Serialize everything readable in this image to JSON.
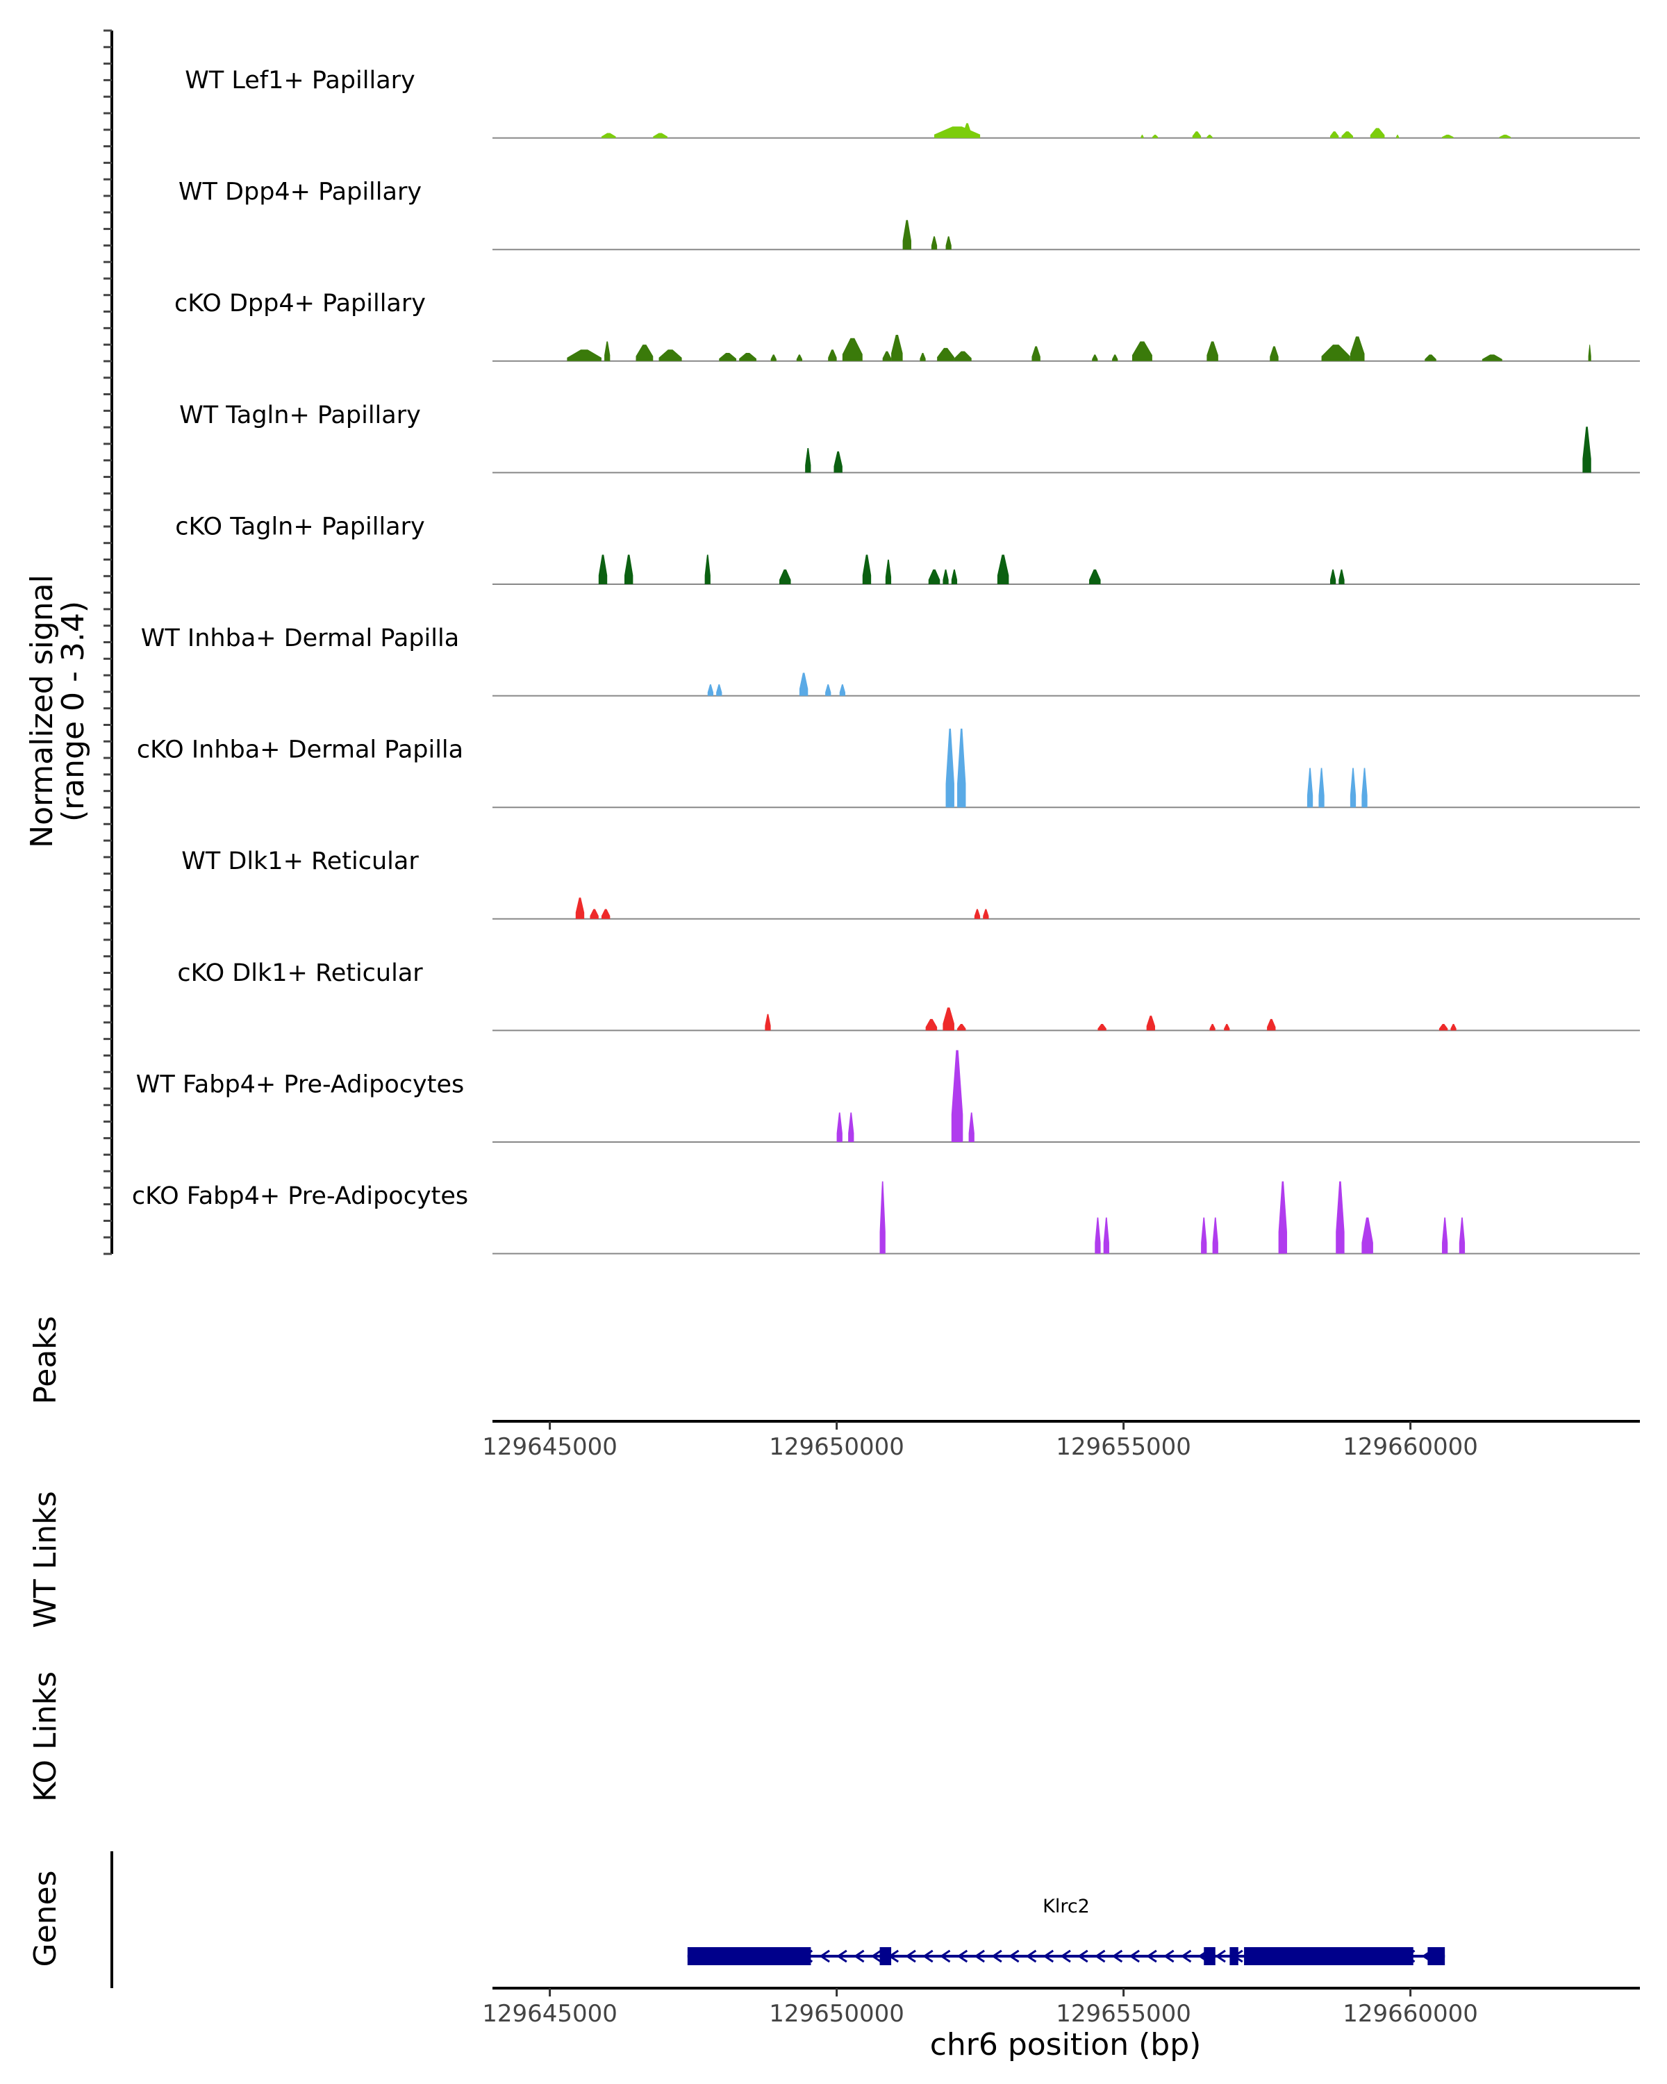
{
  "chart_data": {
    "type": "area",
    "title": "",
    "ylabel": "Normalized signal",
    "ylabel_sub": "(range 0 - 3.4)",
    "yrange": [
      0,
      3.4
    ],
    "xlabel": "chr6 position (bp)",
    "xlim": [
      129644000,
      129664000
    ],
    "xticks": [
      129645000,
      129650000,
      129655000,
      129660000
    ],
    "xtick_labels": [
      "129645000",
      "129650000",
      "129655000",
      "129660000"
    ],
    "tracks": [
      {
        "name": "WT Lef1+ Papillary",
        "color": "#7CCD0C",
        "peaks": [
          [
            129645900,
            129646150,
            0.15
          ],
          [
            129646800,
            129647050,
            0.15
          ],
          [
            129651700,
            129652500,
            0.35
          ],
          [
            129652200,
            129652350,
            0.45
          ],
          [
            129655300,
            129655350,
            0.1
          ],
          [
            129655500,
            129655600,
            0.1
          ],
          [
            129656200,
            129656350,
            0.2
          ],
          [
            129656450,
            129656550,
            0.1
          ],
          [
            129658600,
            129658750,
            0.2
          ],
          [
            129658800,
            129659000,
            0.2
          ],
          [
            129659300,
            129659550,
            0.3
          ],
          [
            129659750,
            129659800,
            0.1
          ],
          [
            129660550,
            129660750,
            0.1
          ],
          [
            129661550,
            129661750,
            0.1
          ]
        ]
      },
      {
        "name": "WT Dpp4+ Papillary",
        "color": "#3A7A0A",
        "peaks": [
          [
            129651150,
            129651300,
            0.9
          ],
          [
            129651650,
            129651750,
            0.4
          ],
          [
            129651900,
            129652000,
            0.4
          ]
        ]
      },
      {
        "name": "cKO Dpp4+ Papillary",
        "color": "#3A7A0A",
        "peaks": [
          [
            129645300,
            129645900,
            0.35
          ],
          [
            129645950,
            129646050,
            0.6
          ],
          [
            129646500,
            129646800,
            0.5
          ],
          [
            129646900,
            129647300,
            0.35
          ],
          [
            129647950,
            129648250,
            0.25
          ],
          [
            129648300,
            129648600,
            0.25
          ],
          [
            129648850,
            129648950,
            0.2
          ],
          [
            129649300,
            129649400,
            0.2
          ],
          [
            129649850,
            129650000,
            0.35
          ],
          [
            129650100,
            129650450,
            0.7
          ],
          [
            129650800,
            129650950,
            0.3
          ],
          [
            129650950,
            129651150,
            0.8
          ],
          [
            129651450,
            129651550,
            0.25
          ],
          [
            129651750,
            129652050,
            0.4
          ],
          [
            129652050,
            129652350,
            0.3
          ],
          [
            129653400,
            129653550,
            0.45
          ],
          [
            129654450,
            129654550,
            0.2
          ],
          [
            129654800,
            129654900,
            0.2
          ],
          [
            129655150,
            129655500,
            0.6
          ],
          [
            129656450,
            129656650,
            0.6
          ],
          [
            129657550,
            129657700,
            0.45
          ],
          [
            129658450,
            129658950,
            0.5
          ],
          [
            129658950,
            129659200,
            0.75
          ],
          [
            129660250,
            129660450,
            0.2
          ],
          [
            129661250,
            129661600,
            0.2
          ],
          [
            129663100,
            129663150,
            0.5
          ]
        ]
      },
      {
        "name": "WT Tagln+ Papillary",
        "color": "#0B6011",
        "peaks": [
          [
            129649450,
            129649550,
            0.75
          ],
          [
            129649950,
            129650100,
            0.65
          ],
          [
            129663000,
            129663150,
            1.4
          ]
        ]
      },
      {
        "name": "cKO Tagln+ Papillary",
        "color": "#0B6011",
        "peaks": [
          [
            129645850,
            129646000,
            0.9
          ],
          [
            129646300,
            129646450,
            0.9
          ],
          [
            129647700,
            129647800,
            0.9
          ],
          [
            129649000,
            129649200,
            0.45
          ],
          [
            129650450,
            129650600,
            0.9
          ],
          [
            129650850,
            129650950,
            0.75
          ],
          [
            129651600,
            129651800,
            0.45
          ],
          [
            129651850,
            129651950,
            0.45
          ],
          [
            129652000,
            129652100,
            0.45
          ],
          [
            129652800,
            129653000,
            0.9
          ],
          [
            129654400,
            129654600,
            0.45
          ],
          [
            129658600,
            129658700,
            0.45
          ],
          [
            129658750,
            129658850,
            0.45
          ]
        ]
      },
      {
        "name": "WT Inhba+ Dermal Papilla",
        "color": "#5AAAE6",
        "peaks": [
          [
            129647750,
            129647850,
            0.35
          ],
          [
            129647900,
            129648000,
            0.35
          ],
          [
            129649350,
            129649500,
            0.7
          ],
          [
            129649800,
            129649900,
            0.35
          ],
          [
            129650050,
            129650150,
            0.35
          ]
        ]
      },
      {
        "name": "cKO Inhba+ Dermal Papilla",
        "color": "#5AAAE6",
        "peaks": [
          [
            129651900,
            129652050,
            2.4
          ],
          [
            129652100,
            129652250,
            2.4
          ],
          [
            129658200,
            129658300,
            1.2
          ],
          [
            129658400,
            129658500,
            1.2
          ],
          [
            129658950,
            129659050,
            1.2
          ],
          [
            129659150,
            129659250,
            1.2
          ]
        ]
      },
      {
        "name": "WT Dlk1+ Reticular",
        "color": "#EE2A2A",
        "peaks": [
          [
            129645450,
            129645600,
            0.65
          ],
          [
            129645700,
            129645850,
            0.3
          ],
          [
            129645900,
            129646050,
            0.3
          ],
          [
            129652400,
            129652500,
            0.3
          ],
          [
            129652550,
            129652650,
            0.3
          ]
        ]
      },
      {
        "name": "cKO Dlk1+ Reticular",
        "color": "#EE2A2A",
        "peaks": [
          [
            129648750,
            129648850,
            0.5
          ],
          [
            129651550,
            129651750,
            0.35
          ],
          [
            129651850,
            129652050,
            0.7
          ],
          [
            129652100,
            129652250,
            0.2
          ],
          [
            129654550,
            129654700,
            0.2
          ],
          [
            129655400,
            129655550,
            0.45
          ],
          [
            129656500,
            129656600,
            0.2
          ],
          [
            129656750,
            129656850,
            0.2
          ],
          [
            129657500,
            129657650,
            0.35
          ],
          [
            129660500,
            129660650,
            0.2
          ],
          [
            129660700,
            129660800,
            0.2
          ]
        ]
      },
      {
        "name": "WT Fabp4+ Pre-Adipocytes",
        "color": "#B03CEE",
        "peaks": [
          [
            129650000,
            129650100,
            0.9
          ],
          [
            129650200,
            129650300,
            0.9
          ],
          [
            129652000,
            129652200,
            2.8
          ],
          [
            129652300,
            129652400,
            0.9
          ]
        ]
      },
      {
        "name": "cKO Fabp4+ Pre-Adipocytes",
        "color": "#B03CEE",
        "peaks": [
          [
            129650750,
            129650850,
            2.2
          ],
          [
            129654500,
            129654600,
            1.1
          ],
          [
            129654650,
            129654750,
            1.1
          ],
          [
            129656350,
            129656450,
            1.1
          ],
          [
            129656550,
            129656650,
            1.1
          ],
          [
            129657700,
            129657850,
            2.2
          ],
          [
            129658700,
            129658850,
            2.2
          ],
          [
            129659150,
            129659350,
            1.1
          ],
          [
            129660550,
            129660650,
            1.1
          ],
          [
            129660850,
            129660950,
            1.1
          ]
        ]
      }
    ],
    "panels": {
      "peaks": "Peaks",
      "wt_links": "WT Links",
      "ko_links": "KO Links",
      "genes": "Genes"
    },
    "gene": {
      "name": "Klrc2",
      "strand": "-",
      "start": 129647400,
      "end": 129660600,
      "exons": [
        [
          129647400,
          129649550
        ],
        [
          129650750,
          129650950
        ],
        [
          129656400,
          129656600
        ],
        [
          129656850,
          129657000
        ],
        [
          129657100,
          129660050
        ],
        [
          129660300,
          129660600
        ]
      ],
      "color": "#00008B"
    }
  }
}
